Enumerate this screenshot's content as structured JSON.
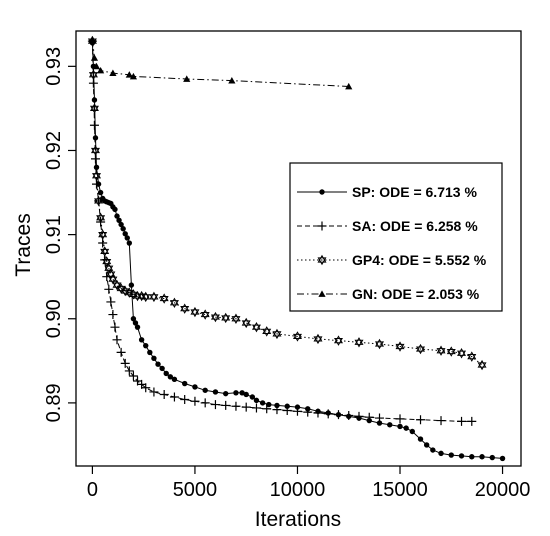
{
  "chart_data": {
    "type": "line",
    "title": "",
    "xlabel": "Iterations",
    "ylabel": "Traces",
    "xlim": [
      -800,
      20900
    ],
    "ylim": [
      0.8825,
      0.9342
    ],
    "xticks": [
      0,
      5000,
      10000,
      15000,
      20000
    ],
    "xtick_labels": [
      "0",
      "5000",
      "10000",
      "15000",
      "20000"
    ],
    "yticks": [
      0.89,
      0.9,
      0.91,
      0.92,
      0.93
    ],
    "ytick_labels": [
      "0.89",
      "0.90",
      "0.91",
      "0.92",
      "0.93"
    ],
    "grid": false,
    "legend_position": "right",
    "series": [
      {
        "name": "SP: ODE = 6.713 %",
        "marker": "filled-circle",
        "dash": "solid",
        "x": [
          0,
          50,
          100,
          150,
          200,
          300,
          400,
          500,
          600,
          700,
          800,
          900,
          1000,
          1100,
          1200,
          1300,
          1400,
          1500,
          1600,
          1700,
          1800,
          1900,
          2000,
          2100,
          2200,
          2400,
          2600,
          2800,
          3000,
          3200,
          3400,
          3600,
          3800,
          4000,
          4500,
          5000,
          5500,
          6000,
          6500,
          7000,
          7300,
          7500,
          7800,
          8000,
          8300,
          8600,
          9000,
          9500,
          10000,
          10500,
          11000,
          11500,
          12000,
          12500,
          13000,
          13500,
          14000,
          14500,
          15000,
          15300,
          15600,
          16000,
          16300,
          16600,
          17000,
          17500,
          18000,
          18500,
          19000,
          19500,
          20000
        ],
        "y": [
          0.9328,
          0.93,
          0.926,
          0.9215,
          0.918,
          0.916,
          0.915,
          0.9143,
          0.914,
          0.9139,
          0.9138,
          0.9137,
          0.9133,
          0.913,
          0.9122,
          0.9117,
          0.9112,
          0.9107,
          0.9101,
          0.9096,
          0.909,
          0.904,
          0.9,
          0.8995,
          0.899,
          0.8975,
          0.8968,
          0.896,
          0.8953,
          0.8946,
          0.8941,
          0.8935,
          0.8931,
          0.8928,
          0.8923,
          0.8919,
          0.8915,
          0.8913,
          0.8911,
          0.8912,
          0.8912,
          0.891,
          0.8907,
          0.8903,
          0.89,
          0.8898,
          0.8897,
          0.8896,
          0.8895,
          0.8893,
          0.889,
          0.8888,
          0.8886,
          0.8884,
          0.8882,
          0.8879,
          0.8876,
          0.8874,
          0.8872,
          0.887,
          0.8866,
          0.8857,
          0.885,
          0.8844,
          0.884,
          0.8838,
          0.8837,
          0.8836,
          0.8836,
          0.8835,
          0.8834
        ]
      },
      {
        "name": "SA: ODE = 6.258 %",
        "marker": "plus",
        "dash": "dashed",
        "x": [
          0,
          50,
          100,
          150,
          200,
          300,
          400,
          500,
          600,
          700,
          800,
          900,
          1000,
          1100,
          1200,
          1400,
          1600,
          1800,
          2000,
          2200,
          2400,
          2600,
          3000,
          3500,
          4000,
          4500,
          5000,
          5500,
          6000,
          6500,
          7000,
          7500,
          8000,
          8500,
          9000,
          9500,
          10000,
          10500,
          11000,
          11500,
          12000,
          12500,
          13000,
          13500,
          14000,
          15000,
          16000,
          17000,
          18000,
          18500
        ],
        "y": [
          0.933,
          0.928,
          0.923,
          0.919,
          0.916,
          0.914,
          0.9115,
          0.909,
          0.907,
          0.905,
          0.9035,
          0.902,
          0.9005,
          0.899,
          0.8975,
          0.896,
          0.8947,
          0.8938,
          0.8932,
          0.8926,
          0.8922,
          0.8918,
          0.8913,
          0.891,
          0.8907,
          0.8904,
          0.8902,
          0.89,
          0.8898,
          0.8897,
          0.8896,
          0.8895,
          0.8894,
          0.8893,
          0.8892,
          0.8891,
          0.889,
          0.8889,
          0.8888,
          0.8887,
          0.8886,
          0.8885,
          0.8884,
          0.8883,
          0.8882,
          0.8881,
          0.888,
          0.8879,
          0.8878,
          0.8878
        ]
      },
      {
        "name": "GP4: ODE = 5.552 %",
        "marker": "star",
        "dash": "dotted",
        "x": [
          0,
          50,
          100,
          150,
          200,
          300,
          400,
          500,
          600,
          700,
          800,
          900,
          1000,
          1200,
          1400,
          1600,
          1800,
          2000,
          2200,
          2400,
          2600,
          3000,
          3500,
          4000,
          4500,
          5000,
          5500,
          6000,
          6500,
          7000,
          7500,
          8000,
          8500,
          9000,
          10000,
          11000,
          12000,
          13000,
          14000,
          15000,
          16000,
          17000,
          17500,
          18000,
          18500,
          19000
        ],
        "y": [
          0.933,
          0.929,
          0.925,
          0.92,
          0.917,
          0.914,
          0.912,
          0.91,
          0.908,
          0.9068,
          0.906,
          0.9053,
          0.9047,
          0.904,
          0.9036,
          0.9033,
          0.9031,
          0.9029,
          0.9027,
          0.9027,
          0.9026,
          0.9026,
          0.9024,
          0.9019,
          0.9012,
          0.9008,
          0.9005,
          0.9002,
          0.9001,
          0.9,
          0.8995,
          0.899,
          0.8985,
          0.8982,
          0.8979,
          0.8976,
          0.8974,
          0.8972,
          0.897,
          0.8967,
          0.8964,
          0.8962,
          0.8961,
          0.8959,
          0.8955,
          0.8945
        ]
      },
      {
        "name": "GN: ODE = 2.053 %",
        "marker": "triangle",
        "dash": "dashdot",
        "x": [
          0,
          100,
          200,
          400,
          1000,
          1800,
          2000,
          4600,
          6800,
          12500
        ],
        "y": [
          0.9332,
          0.931,
          0.93,
          0.9295,
          0.9292,
          0.929,
          0.9288,
          0.9285,
          0.9283,
          0.9276
        ]
      }
    ]
  }
}
